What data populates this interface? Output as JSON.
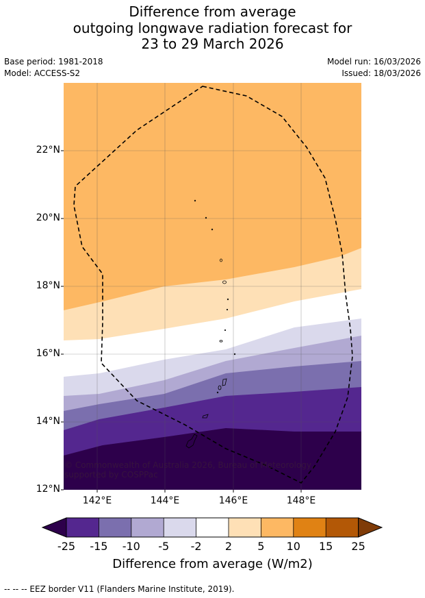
{
  "title": {
    "line1": "Difference from average",
    "line2": "outgoing longwave radiation forecast for",
    "line3": "23 to 29 March 2026"
  },
  "meta": {
    "base_period": "Base period: 1981-2018",
    "model": "Model: ACCESS-S2",
    "model_run": "Model run: 16/03/2026",
    "issued": "Issued: 18/03/2026"
  },
  "map": {
    "lat_labels": [
      "22°N",
      "20°N",
      "18°N",
      "16°N",
      "14°N",
      "12°N"
    ],
    "lon_labels": [
      "142°E",
      "144°E",
      "146°E",
      "148°E"
    ],
    "copyright": "© Commonwealth of Australia 2026, Bureau of Meteorology, supported by COSPPac"
  },
  "colorbar": {
    "ticks": [
      "-25",
      "-15",
      "-10",
      "-5",
      "-2",
      "2",
      "5",
      "10",
      "15",
      "25"
    ],
    "colors": [
      "#54278f",
      "#7b6fae",
      "#b1a9d2",
      "#dad9ec",
      "#ffffff",
      "#fee0b6",
      "#fdb863",
      "#e08214",
      "#b35806"
    ],
    "low_extend_color": "#2d004b",
    "high_extend_color": "#7f3b08",
    "label": "Difference from average (W/m2)"
  },
  "footer": "--  --  -- EEZ border V11 (Flanders Marine Institute, 2019)."
}
